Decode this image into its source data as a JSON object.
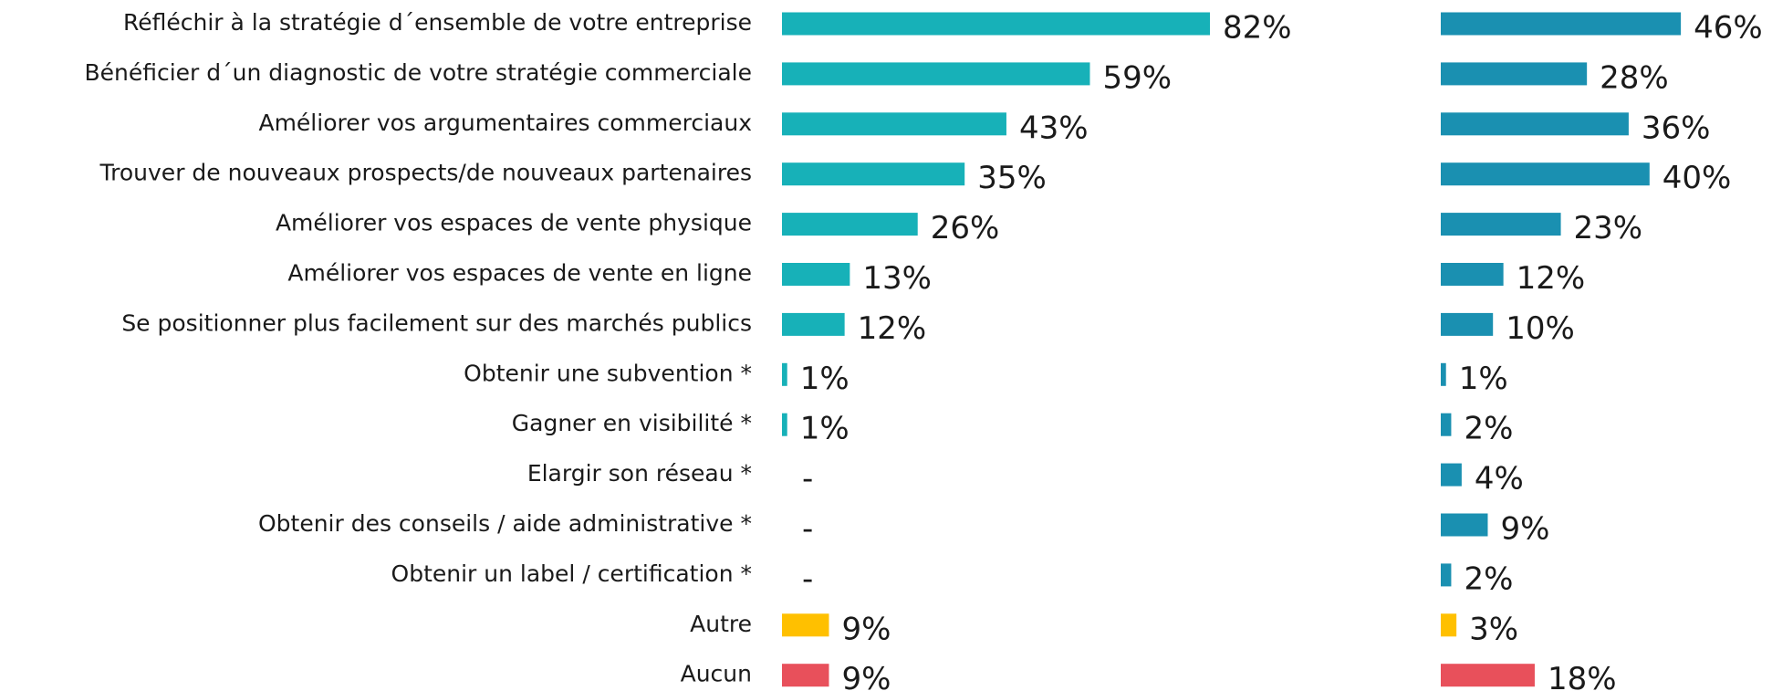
{
  "chart_data": [
    {
      "type": "bar",
      "categories": [
        "Réfléchir à la stratégie d´ensemble de votre entreprise",
        "Bénéficier d´un diagnostic de votre stratégie commerciale",
        "Améliorer vos argumentaires commerciaux",
        "Trouver de nouveaux prospects/de nouveaux partenaires",
        "Améliorer vos espaces de vente physique",
        "Améliorer vos espaces de vente en ligne",
        "Se positionner plus facilement sur des marchés publics",
        "Obtenir une subvention *",
        "Gagner en visibilité *",
        "Elargir son réseau *",
        "Obtenir des conseils / aide administrative *",
        "Obtenir un label / certification *",
        "Autre",
        "Aucun"
      ],
      "values": [
        82,
        59,
        43,
        35,
        26,
        13,
        12,
        1,
        1,
        null,
        null,
        null,
        9,
        9
      ],
      "value_labels": [
        "82%",
        "59%",
        "43%",
        "35%",
        "26%",
        "13%",
        "12%",
        "1%",
        "1%",
        "-",
        "-",
        "-",
        "9%",
        "9%"
      ],
      "colors": [
        "#17b1b8",
        "#17b1b8",
        "#17b1b8",
        "#17b1b8",
        "#17b1b8",
        "#17b1b8",
        "#17b1b8",
        "#17b1b8",
        "#17b1b8",
        "#17b1b8",
        "#17b1b8",
        "#17b1b8",
        "#ffc000",
        "#e8505b"
      ]
    },
    {
      "type": "bar",
      "values": [
        46,
        28,
        36,
        40,
        23,
        12,
        10,
        1,
        2,
        4,
        9,
        2,
        3,
        18
      ],
      "value_labels": [
        "46%",
        "28%",
        "36%",
        "40%",
        "23%",
        "12%",
        "10%",
        "1%",
        "2%",
        "4%",
        "9%",
        "2%",
        "3%",
        "18%"
      ],
      "colors": [
        "#1a90b1",
        "#1a90b1",
        "#1a90b1",
        "#1a90b1",
        "#1a90b1",
        "#1a90b1",
        "#1a90b1",
        "#1a90b1",
        "#1a90b1",
        "#1a90b1",
        "#1a90b1",
        "#1a90b1",
        "#ffc000",
        "#e8505b"
      ]
    }
  ]
}
